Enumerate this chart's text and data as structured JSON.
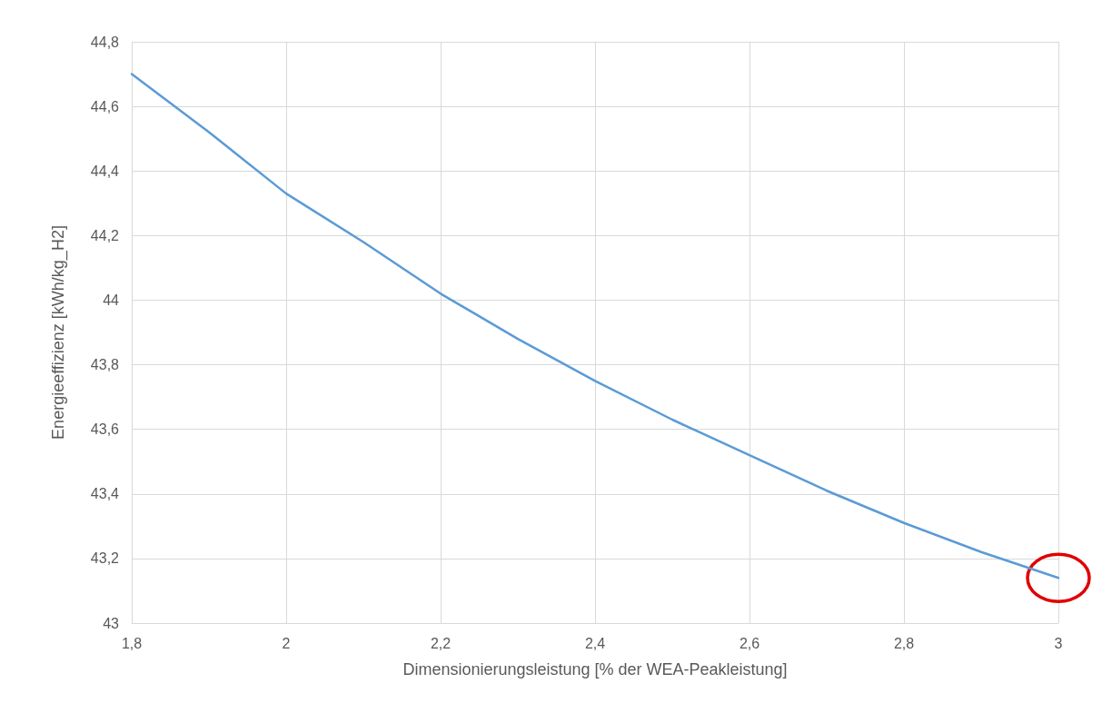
{
  "chart_data": {
    "type": "line",
    "xlabel": "Dimensionierungsleistung [% der WEA-Peakleistung]",
    "ylabel": "Energieeffizienz [kWh/kg_H2]",
    "x": [
      1.8,
      1.9,
      2.0,
      2.1,
      2.2,
      2.3,
      2.4,
      2.5,
      2.6,
      2.7,
      2.8,
      2.9,
      3.0
    ],
    "series": [
      {
        "color": "#5b9bd5",
        "values": [
          44.7,
          44.52,
          44.33,
          44.18,
          44.02,
          43.88,
          43.75,
          43.63,
          43.52,
          43.41,
          43.31,
          43.22,
          43.14
        ]
      }
    ],
    "xlim": [
      1.8,
      3
    ],
    "ylim": [
      43,
      44.8
    ],
    "xticks": [
      {
        "value": 1.8,
        "label": "1,8"
      },
      {
        "value": 2,
        "label": "2"
      },
      {
        "value": 2.2,
        "label": "2,2"
      },
      {
        "value": 2.4,
        "label": "2,4"
      },
      {
        "value": 2.6,
        "label": "2,6"
      },
      {
        "value": 2.8,
        "label": "2,8"
      },
      {
        "value": 3,
        "label": "3"
      }
    ],
    "yticks": [
      {
        "value": 43,
        "label": "43"
      },
      {
        "value": 43.2,
        "label": "43,2"
      },
      {
        "value": 43.4,
        "label": "43,4"
      },
      {
        "value": 43.6,
        "label": "43,6"
      },
      {
        "value": 43.8,
        "label": "43,8"
      },
      {
        "value": 44,
        "label": "44"
      },
      {
        "value": 44.2,
        "label": "44,2"
      },
      {
        "value": 44.4,
        "label": "44,4"
      },
      {
        "value": 44.6,
        "label": "44,6"
      },
      {
        "value": 44.8,
        "label": "44,8"
      }
    ],
    "grid": true,
    "marker": "none",
    "line_style": "solid"
  }
}
